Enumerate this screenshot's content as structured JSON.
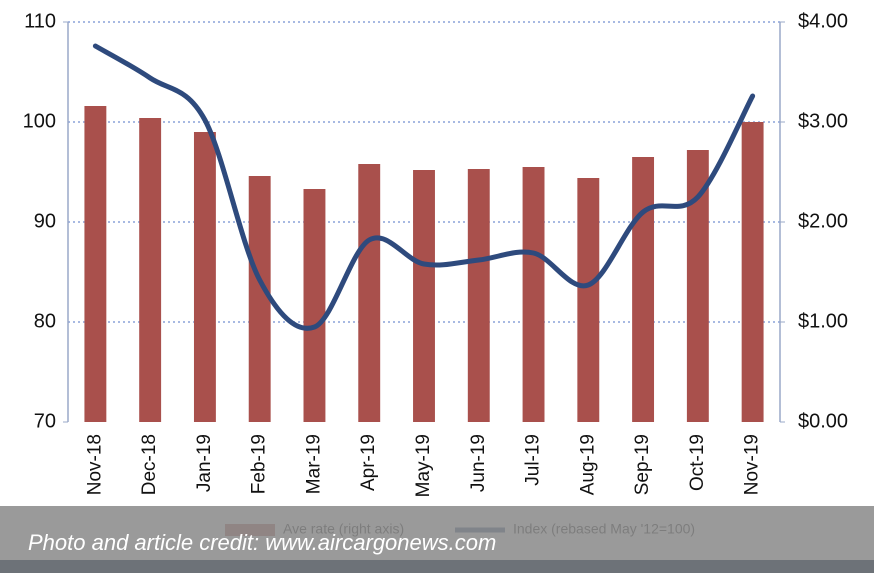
{
  "chart_data": {
    "type": "bar-line",
    "categories": [
      "Nov-18",
      "Dec-18",
      "Jan-19",
      "Feb-19",
      "Mar-19",
      "Apr-19",
      "May-19",
      "Jun-19",
      "Jul-19",
      "Aug-19",
      "Sep-19",
      "Oct-19",
      "Nov-19"
    ],
    "series": [
      {
        "name": "Ave rate (right axis)",
        "type": "bar",
        "axis": "y2",
        "color": "#a9504c",
        "values": [
          3.16,
          3.04,
          2.9,
          2.46,
          2.33,
          2.58,
          2.52,
          2.53,
          2.55,
          2.44,
          2.65,
          2.72,
          3.0
        ]
      },
      {
        "name": "Index (rebased May '12=100)",
        "type": "line",
        "axis": "y",
        "color": "#2e4a7d",
        "values": [
          107.6,
          104.4,
          100.2,
          84.2,
          79.5,
          88.2,
          85.8,
          86.2,
          86.9,
          83.7,
          91,
          92.5,
          102.6
        ]
      }
    ],
    "ylim": [
      70,
      110
    ],
    "yticks": [
      70,
      80,
      90,
      100,
      110
    ],
    "y2lim": [
      0,
      4
    ],
    "y2ticks": [
      {
        "value": 0,
        "label": "$0.00"
      },
      {
        "value": 1,
        "label": "$1.00"
      },
      {
        "value": 2,
        "label": "$2.00"
      },
      {
        "value": 3,
        "label": "$3.00"
      },
      {
        "value": 4,
        "label": "$4.00"
      }
    ],
    "grid": true,
    "legend": "bottom"
  },
  "banner": {
    "text": "Photo and article credit: www.aircargonews.com"
  }
}
